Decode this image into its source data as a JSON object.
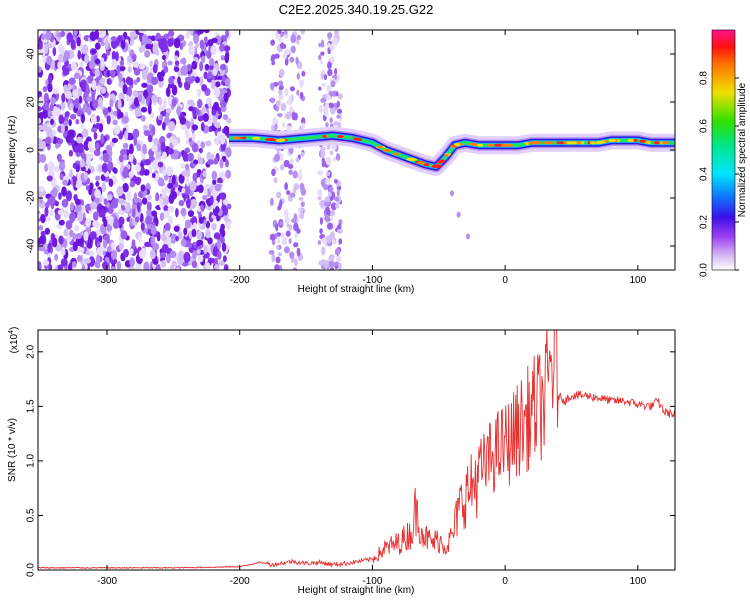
{
  "title": "C2E2.2025.340.19.25.G22",
  "colors": {
    "spectrogram_noise": "#8a2be2",
    "snr_line": "#e83030",
    "axes": "#000000"
  },
  "chart_data": [
    {
      "type": "heatmap",
      "title": "C2E2.2025.340.19.25.G22",
      "xlabel": "Height of straight line (km)",
      "ylabel": "Frequency (Hz)",
      "xlim": [
        -352,
        128
      ],
      "ylim": [
        -50,
        50
      ],
      "x_ticks": [
        -300,
        -200,
        -100,
        0,
        100
      ],
      "y_ticks": [
        -40,
        -20,
        0,
        20,
        40
      ],
      "colorbar": {
        "label": "Normalized spectral amplitude",
        "range": [
          0,
          1
        ],
        "ticks": [
          0.0,
          0.2,
          0.4,
          0.6,
          0.8
        ],
        "tick_labels": [
          "0.0",
          "0.2",
          "0.4",
          "0.6",
          "0.8"
        ]
      },
      "dominant_frequency_track": {
        "x": [
          -208,
          -190,
          -170,
          -150,
          -130,
          -115,
          -100,
          -90,
          -80,
          -70,
          -60,
          -52,
          -45,
          -38,
          -30,
          -20,
          -10,
          0,
          10,
          20,
          30,
          40,
          50,
          60,
          70,
          80,
          90,
          100,
          110,
          120,
          128
        ],
        "y": [
          5,
          5,
          4,
          5,
          6,
          5,
          3,
          0,
          -2,
          -4,
          -6,
          -7,
          -3,
          2,
          3,
          2,
          2,
          2,
          2,
          3,
          3,
          3,
          3,
          3,
          3,
          4,
          4,
          4,
          3,
          3,
          3
        ]
      },
      "noise_region_x": [
        -352,
        -208
      ],
      "sparse_noise_bands_x": [
        [
          -176,
          -152
        ],
        [
          -140,
          -124
        ]
      ],
      "scattered_points": [
        {
          "x": -40,
          "y": -18
        },
        {
          "x": -35,
          "y": -27
        },
        {
          "x": -28,
          "y": -36
        }
      ]
    },
    {
      "type": "line",
      "xlabel": "Height of straight line (km)",
      "ylabel": "SNR (10 * v/v)",
      "y_scale_label": "(x10^4)",
      "y_scale_base": "(x10",
      "y_scale_exp": "4",
      "y_scale_close": ")",
      "xlim": [
        -352,
        128
      ],
      "ylim": [
        0,
        2.2
      ],
      "x_ticks": [
        -300,
        -200,
        -100,
        0,
        100
      ],
      "y_ticks": [
        0.0,
        0.5,
        1.0,
        1.5,
        2.0
      ],
      "y_tick_labels": [
        "0.0",
        "0.5",
        "1.0",
        "1.5",
        "2.0"
      ],
      "series": [
        {
          "name": "SNR",
          "x": [
            -352,
            -300,
            -250,
            -200,
            -185,
            -175,
            -160,
            -150,
            -140,
            -130,
            -120,
            -110,
            -100,
            -90,
            -80,
            -70,
            -68,
            -60,
            -55,
            -50,
            -45,
            -40,
            -35,
            -30,
            -25,
            -20,
            -15,
            -10,
            -5,
            0,
            5,
            10,
            15,
            20,
            25,
            30,
            35,
            38,
            40,
            45,
            50,
            60,
            70,
            80,
            90,
            100,
            110,
            115,
            120,
            128
          ],
          "y": [
            0.02,
            0.02,
            0.02,
            0.03,
            0.07,
            0.05,
            0.08,
            0.06,
            0.07,
            0.05,
            0.06,
            0.08,
            0.1,
            0.2,
            0.25,
            0.35,
            0.55,
            0.3,
            0.25,
            0.28,
            0.22,
            0.3,
            0.55,
            0.7,
            0.75,
            0.9,
            0.95,
            1.05,
            1.1,
            1.15,
            1.2,
            1.3,
            1.35,
            1.45,
            1.5,
            1.55,
            1.9,
            2.1,
            1.6,
            1.55,
            1.6,
            1.6,
            1.58,
            1.55,
            1.55,
            1.52,
            1.5,
            1.55,
            1.45,
            1.42
          ]
        }
      ]
    }
  ]
}
